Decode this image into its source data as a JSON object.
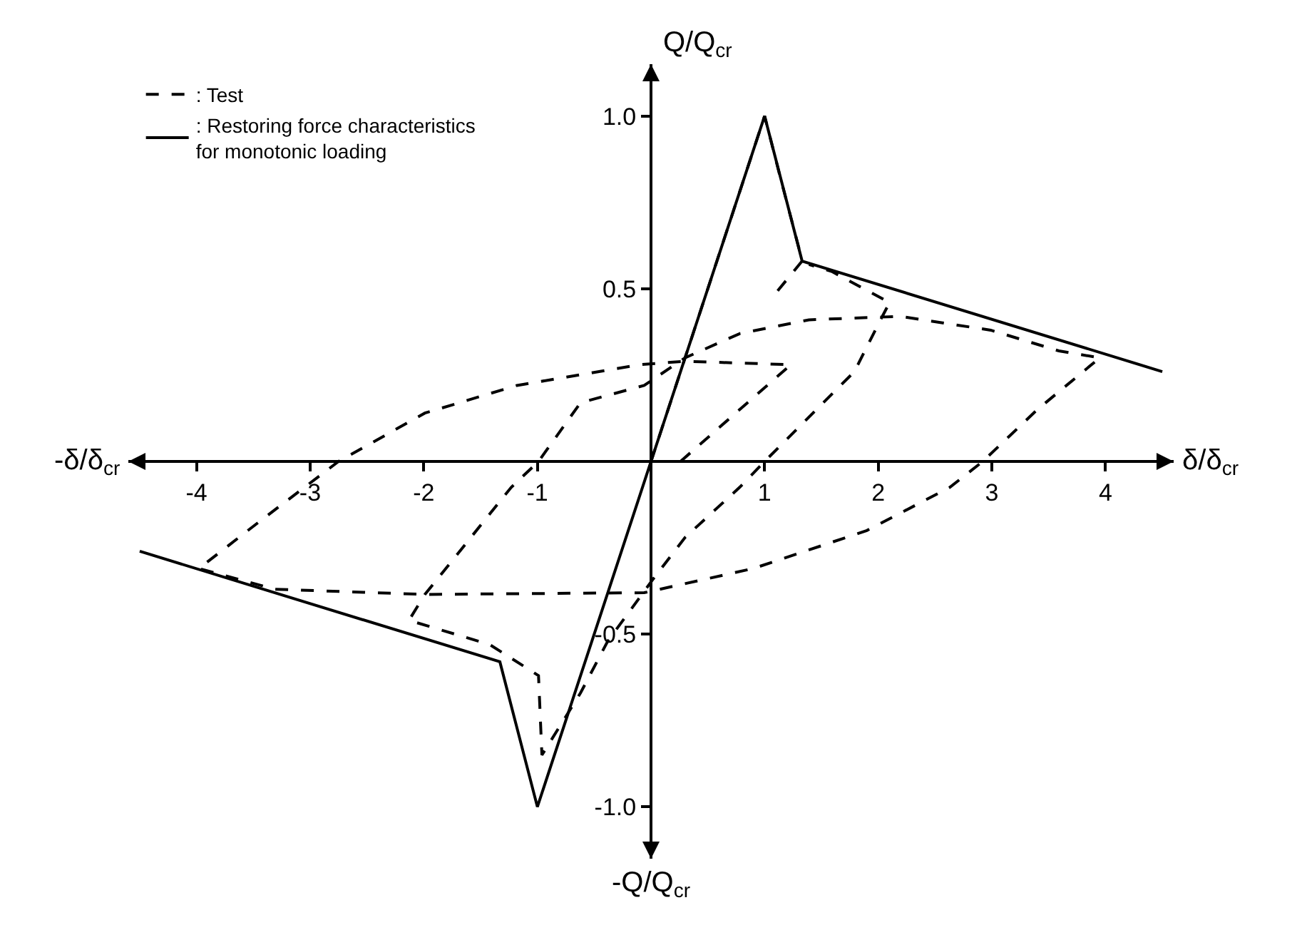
{
  "chart_data": {
    "type": "line",
    "xlabel": "δ/δ$_{cr}$",
    "ylabel": "Q/Q$_{cr}$",
    "annotations": [
      "-δ/δ$_{cr}$",
      "-Q/Q$_{cr}$"
    ],
    "xlim": [
      -4.6,
      4.6
    ],
    "ylim": [
      -1.15,
      1.15
    ],
    "xticks": [
      -4,
      -3,
      -2,
      -1,
      1,
      2,
      3,
      4
    ],
    "yticks": [
      {
        "value": -1.0,
        "label": "-1.0"
      },
      {
        "value": -0.5,
        "label": "-0.5"
      },
      {
        "value": 0.5,
        "label": "0.5"
      },
      {
        "value": 1.0,
        "label": "1.0"
      }
    ],
    "grid": false,
    "legend": "top left",
    "marker": "none",
    "series": [
      {
        "name": ": Test",
        "color": "#000000",
        "line_style": "dashed",
        "x": [
          0,
          0.5,
          1,
          1.14,
          1.3,
          1.33,
          1.08,
          null,
          0.26,
          1.23,
          0.3,
          -0.1,
          -1.18,
          -1.99,
          -2.75,
          -3.43,
          -3.98,
          -3.31,
          -1.99,
          -0.06,
          0.9,
          1.9,
          2.63,
          2.92,
          3.4,
          3.95,
          3.59,
          2.99,
          2.19,
          1.39,
          0.78,
          0.3,
          -0.06,
          -0.62,
          -0.99,
          -1.23,
          -1.99,
          -2.13,
          -1.42,
          -0.99,
          -0.96,
          -0.62,
          -0.38,
          0.02,
          0.3,
          0.78,
          1.0,
          1.79,
          2.02,
          2.1,
          1.59,
          1.39
        ],
        "values": [
          0,
          0.5,
          1,
          0.82,
          0.62,
          0.58,
          0.48,
          null,
          0,
          0.28,
          0.29,
          0.28,
          0.22,
          0.14,
          0,
          -0.17,
          -0.31,
          -0.37,
          -0.385,
          -0.38,
          -0.31,
          -0.2,
          -0.075,
          0,
          0.15,
          0.3,
          0.32,
          0.38,
          0.42,
          0.41,
          0.37,
          0.3,
          0.22,
          0.17,
          0,
          -0.075,
          -0.385,
          -0.46,
          -0.53,
          -0.62,
          -0.85,
          -0.67,
          -0.52,
          -0.34,
          -0.22,
          -0.075,
          0,
          0.26,
          0.41,
          0.46,
          0.55,
          0.57
        ]
      },
      {
        "name": ": Restoring force characteristics for monotonic loading",
        "color": "#000000",
        "line_style": "solid",
        "x": [
          -4.5,
          -1.33,
          -1,
          1,
          1.33,
          4.5
        ],
        "values": [
          -0.26,
          -0.58,
          -1.0,
          1.0,
          0.58,
          0.26
        ]
      }
    ]
  }
}
